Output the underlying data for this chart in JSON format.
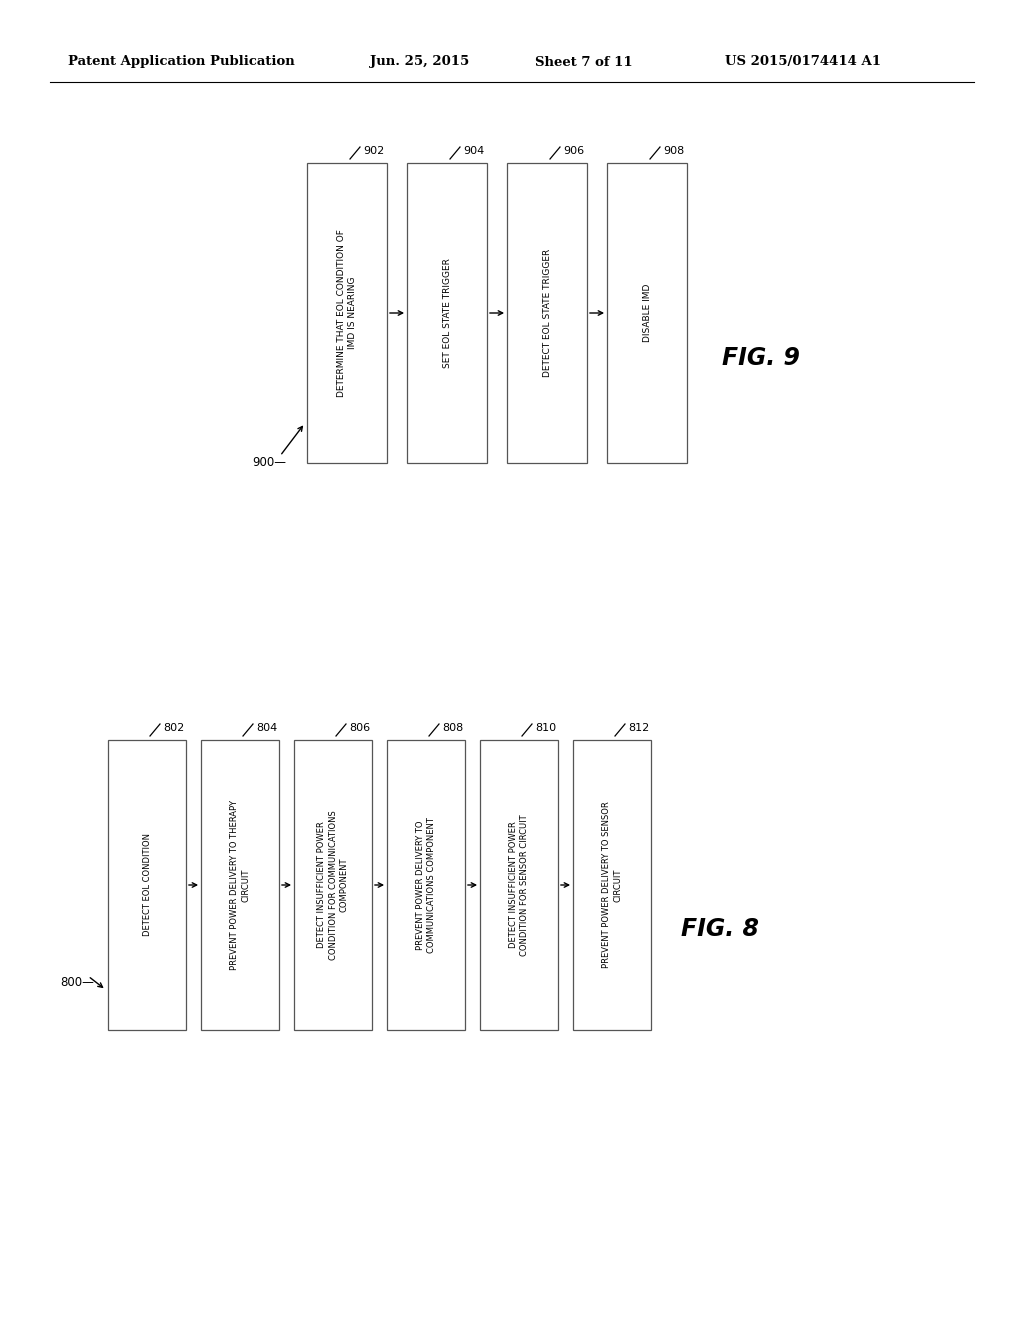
{
  "background_color": "#ffffff",
  "header_text": "Patent Application Publication",
  "header_date": "Jun. 25, 2015",
  "header_sheet": "Sheet 7 of 11",
  "header_patent": "US 2015/0174414 A1",
  "fig9": {
    "label": "900",
    "fig_label": "FIG. 9",
    "boxes": [
      {
        "id": "902",
        "text": "DETERMINE THAT EOL CONDITION OF\nIMD IS NEARING"
      },
      {
        "id": "904",
        "text": "SET EOL STATE TRIGGER"
      },
      {
        "id": "906",
        "text": "DETECT EOL STATE TRIGGER"
      },
      {
        "id": "908",
        "text": "DISABLE IMD"
      }
    ]
  },
  "fig8": {
    "label": "800",
    "fig_label": "FIG. 8",
    "boxes": [
      {
        "id": "802",
        "text": "DETECT EOL CONDITION"
      },
      {
        "id": "804",
        "text": "PREVENT POWER DELIVERY TO THERAPY\nCIRCUIT"
      },
      {
        "id": "806",
        "text": "DETECT INSUFFICIENT POWER\nCONDITION FOR COMMUNICATIONS\nCOMPONENT"
      },
      {
        "id": "808",
        "text": "PREVENT POWER DELIVERY TO\nCOMMUNICATIONS COMPONENT"
      },
      {
        "id": "810",
        "text": "DETECT INSUFFICIENT POWER\nCONDITION FOR SENSOR CIRCUIT"
      },
      {
        "id": "812",
        "text": "PREVENT POWER DELIVERY TO SENSOR\nCIRCUIT"
      }
    ]
  }
}
